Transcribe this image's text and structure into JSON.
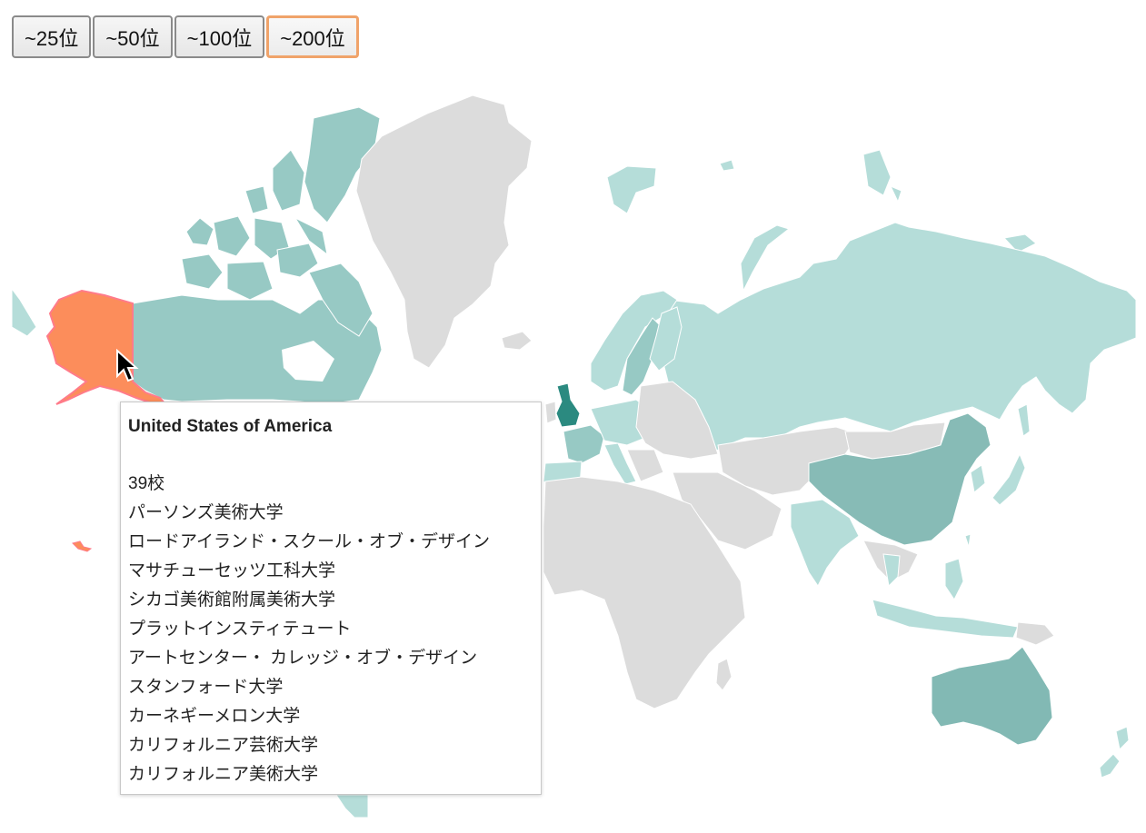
{
  "toolbar": {
    "buttons": [
      {
        "label": "~25位",
        "active": false
      },
      {
        "label": "~50位",
        "active": false
      },
      {
        "label": "~100位",
        "active": false
      },
      {
        "label": "~200位",
        "active": true
      }
    ]
  },
  "colors": {
    "no_data": "#dcdcdc",
    "low": "#b5ddd9",
    "mid": "#97c9c4",
    "high": "#82b9b4",
    "top": "#2b8a80",
    "hover": "#fc8d5b",
    "hover_stroke": "#ff7b8a"
  },
  "tooltip": {
    "country": "United States of America",
    "count": "39校",
    "schools": [
      "パーソンズ美術大学",
      "ロードアイランド・スクール・オブ・デザイン",
      "マサチューセッツ工科大学",
      "シカゴ美術館附属美術大学",
      "プラットインスティテュート",
      "アートセンター・ カレッジ・オブ・デザイン",
      "スタンフォード大学",
      "カーネギーメロン大学",
      "カリフォルニア芸術大学",
      "カリフォルニア美術大学"
    ]
  }
}
